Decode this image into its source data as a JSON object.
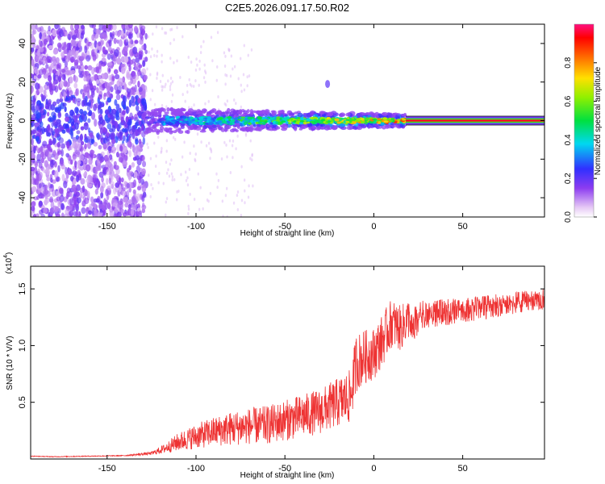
{
  "title": "C2E5.2026.091.17.50.R02",
  "chart_data": [
    {
      "type": "heatmap",
      "xlabel": "Height of straight line (km)",
      "ylabel": "Frequency (Hz)",
      "xlim": [
        -193,
        96
      ],
      "ylim": [
        -50,
        50
      ],
      "xticks": [
        -150,
        -100,
        -50,
        0,
        50
      ],
      "xtick_labels": [
        "-150",
        "-100",
        "-50",
        "0",
        "50"
      ],
      "yticks": [
        -40,
        -20,
        0,
        20,
        40
      ],
      "ytick_labels": [
        "-40",
        "-20",
        "0",
        "20",
        "40"
      ],
      "colorbar": {
        "label": "Normalized spectral amplitude",
        "range": [
          0,
          1
        ],
        "ticks": [
          0.0,
          0.2,
          0.4,
          0.6,
          0.8
        ],
        "tick_labels": [
          "0.0",
          "0.2",
          "0.4",
          "0.6",
          "0.8"
        ]
      },
      "features": [
        {
          "name": "scattered-noise",
          "x_range": [
            -193,
            -128
          ],
          "freq_range": [
            -50,
            50
          ],
          "amplitude": 0.12
        },
        {
          "name": "tone-band",
          "x_range": [
            -128,
            18
          ],
          "freq_center": 0,
          "freq_halfwidth_start": 4,
          "freq_halfwidth_end": 2,
          "amplitude_start": 0.3,
          "amplitude_end": 0.8
        },
        {
          "name": "steady-line",
          "x_range": [
            18,
            96
          ],
          "freq_center": 0,
          "amplitude": 0.95
        }
      ]
    },
    {
      "type": "line",
      "xlabel": "Height of straight line (km)",
      "ylabel": "SNR (10 * V/V)",
      "y_scale_label": "(x10",
      "y_scale_exp": "4",
      "xlim": [
        -193,
        96
      ],
      "ylim": [
        0,
        17000
      ],
      "xticks": [
        -150,
        -100,
        -50,
        0,
        50
      ],
      "xtick_labels": [
        "-150",
        "-100",
        "-50",
        "0",
        "50"
      ],
      "yticks": [
        5000,
        10000,
        15000
      ],
      "ytick_labels": [
        "0.5",
        "1.0",
        "1.5"
      ],
      "series": [
        {
          "name": "SNR",
          "color": "#ee3333",
          "x": [
            -193,
            -180,
            -160,
            -140,
            -125,
            -118,
            -110,
            -100,
            -90,
            -80,
            -70,
            -60,
            -50,
            -40,
            -30,
            -20,
            -13,
            -10,
            -5,
            0,
            5,
            10,
            15,
            20,
            25,
            30,
            40,
            50,
            60,
            70,
            80,
            90,
            96
          ],
          "y": [
            250,
            200,
            250,
            300,
            500,
            900,
            1500,
            2000,
            2400,
            2700,
            2900,
            3000,
            3400,
            3800,
            4200,
            5000,
            5500,
            8500,
            9000,
            9300,
            10500,
            12000,
            11500,
            12500,
            13200,
            13500,
            13600,
            13700,
            13900,
            14100,
            14300,
            14500,
            14600
          ],
          "noise": [
            30,
            30,
            40,
            40,
            150,
            400,
            800,
            1100,
            1300,
            1500,
            1600,
            1700,
            1800,
            1900,
            2000,
            2200,
            2400,
            2600,
            2400,
            2300,
            2300,
            2200,
            2000,
            1800,
            1600,
            1400,
            1300,
            1200,
            1200,
            1100,
            1100,
            1000,
            1000
          ]
        }
      ]
    }
  ]
}
